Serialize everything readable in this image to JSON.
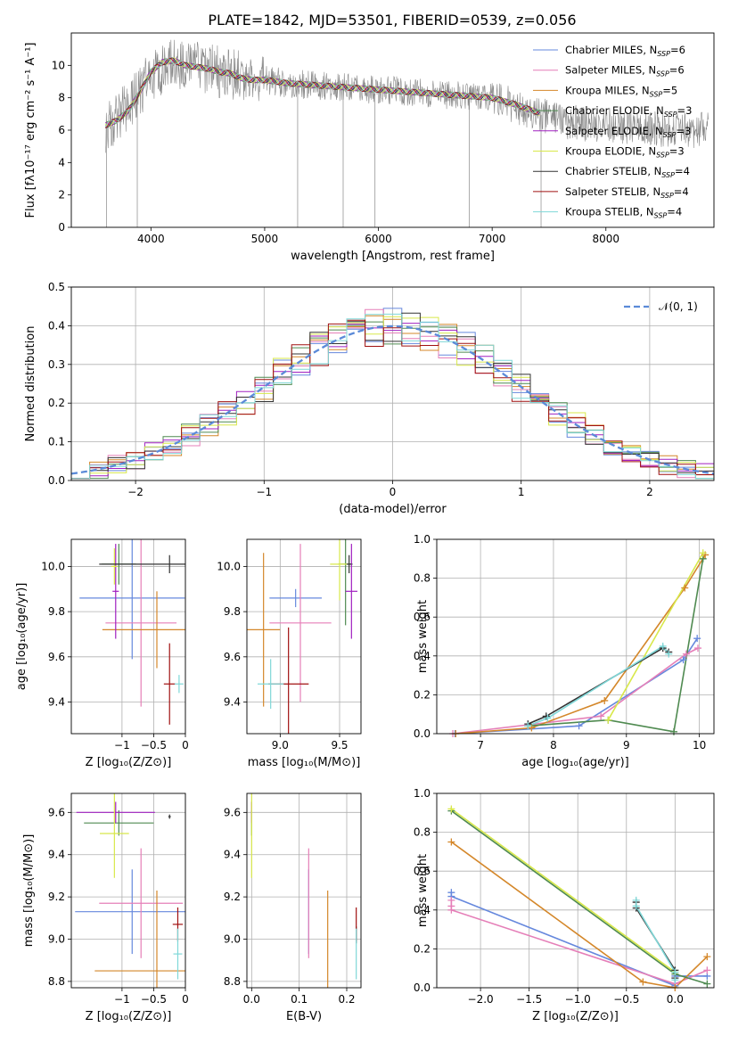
{
  "title": "PLATE=1842, MJD=53501, FIBERID=0539, z=0.056",
  "colors": [
    "#6688dd",
    "#e57fb8",
    "#d4872a",
    "#4f8a50",
    "#a020c0",
    "#d8e84a",
    "#333333",
    "#a01010",
    "#7fd8d8"
  ],
  "chart_data": [
    {
      "type": "line",
      "name": "spectrum",
      "xlabel": "wavelength [Angstrom, rest frame]",
      "ylabel": "Flux [fλ10⁻¹⁷ erg cm⁻² s⁻¹ A⁻¹]",
      "xlim": [
        3300,
        8950
      ],
      "ylim": [
        0,
        12
      ],
      "xticks": [
        4000,
        5000,
        6000,
        7000,
        8000
      ],
      "yticks": [
        0,
        2,
        4,
        6,
        8,
        10
      ],
      "grid": false,
      "legend": "upper right",
      "legend_entries": [
        "Chabrier MILES, N_SSP=6",
        "Salpeter MILES, N_SSP=6",
        "Kroupa MILES, N_SSP=5",
        "Chabrier ELODIE, N_SSP=3",
        "Salpeter ELODIE, N_SSP=3",
        "Kroupa ELODIE, N_SSP=3",
        "Chabrier STELIB, N_SSP=4",
        "Salpeter STELIB, N_SSP=4",
        "Kroupa STELIB, N_SSP=4"
      ],
      "observed": {
        "x": [
          3600,
          3700,
          3800,
          3900,
          4000,
          4100,
          4200,
          4300,
          4400,
          4500,
          4600,
          4700,
          4800,
          4900,
          5000,
          5200,
          5400,
          5600,
          5800,
          6000,
          6200,
          6400,
          6600,
          6800,
          7000,
          7200,
          7400,
          7600,
          7800,
          8000,
          8200,
          8400,
          8600,
          8800
        ],
        "y": [
          6.2,
          6.8,
          7.4,
          8.4,
          9.3,
          9.8,
          10.1,
          10.0,
          9.9,
          9.8,
          9.6,
          9.5,
          9.3,
          9.2,
          9.1,
          8.9,
          8.8,
          8.7,
          8.6,
          8.5,
          8.4,
          8.3,
          8.2,
          8.1,
          8.0,
          7.5,
          7.0,
          6.6,
          6.4,
          6.3,
          6.2,
          6.1,
          6.0,
          6.0
        ]
      },
      "model": {
        "x": [
          3600,
          3700,
          3800,
          3900,
          4000,
          4100,
          4200,
          4300,
          4400,
          4500,
          4600,
          4700,
          4800,
          4900,
          5000,
          5200,
          5400,
          5600,
          5800,
          6000,
          6200,
          6400,
          6600,
          6800,
          7000,
          7200,
          7400
        ],
        "y": [
          6.3,
          6.6,
          7.2,
          8.3,
          9.6,
          10.2,
          10.3,
          10.0,
          9.9,
          9.8,
          9.6,
          9.5,
          9.2,
          9.1,
          9.1,
          8.9,
          8.8,
          8.7,
          8.6,
          8.5,
          8.4,
          8.3,
          8.2,
          8.1,
          8.0,
          7.6,
          7.1
        ]
      }
    },
    {
      "type": "histogram",
      "name": "residuals",
      "xlabel": "(data-model)/error",
      "ylabel": "Normed distribution",
      "xlim": [
        -2.5,
        2.5
      ],
      "ylim": [
        0,
        0.5
      ],
      "xticks": [
        -2,
        -1,
        0,
        1,
        2
      ],
      "yticks": [
        0.0,
        0.1,
        0.2,
        0.3,
        0.4,
        0.5
      ],
      "grid": true,
      "bins": 35,
      "legend": "upper right",
      "legend_entries": [
        "𝒩(0, 1)"
      ]
    },
    {
      "type": "scatter",
      "name": "age-vs-Z",
      "xlabel": "Z [log₁₀(Z/Z⊙)]",
      "ylabel": "age  [log₁₀(age/yr)]",
      "xlim": [
        -1.8,
        0.0
      ],
      "ylim": [
        9.26,
        10.12
      ],
      "xticks": [
        -1,
        -0.5,
        0
      ],
      "yticks": [
        9.4,
        9.6,
        9.8,
        10.0
      ],
      "grid": true,
      "points": [
        {
          "x": -0.84,
          "y": 9.86,
          "xerr": 0.83,
          "yerr": 0.27,
          "c": 0
        },
        {
          "x": -0.7,
          "y": 9.75,
          "xerr": 0.56,
          "yerr": 0.37,
          "c": 1
        },
        {
          "x": -0.45,
          "y": 9.72,
          "xerr": 0.86,
          "yerr": 0.17,
          "c": 2
        },
        {
          "x": -1.05,
          "y": 10.01,
          "xerr": 0.27,
          "yerr": 0.09,
          "c": 3
        },
        {
          "x": -1.1,
          "y": 9.89,
          "xerr": 0.05,
          "yerr": 0.21,
          "c": 4
        },
        {
          "x": -1.12,
          "y": 10.0,
          "xerr": 0.05,
          "yerr": 0.08,
          "c": 5
        },
        {
          "x": -0.25,
          "y": 10.01,
          "xerr": 1.11,
          "yerr": 0.04,
          "c": 6
        },
        {
          "x": -0.25,
          "y": 9.48,
          "xerr": 0.09,
          "yerr": 0.18,
          "c": 7
        },
        {
          "x": -0.1,
          "y": 9.48,
          "xerr": 0.07,
          "yerr": 0.04,
          "c": 8
        }
      ]
    },
    {
      "type": "scatter",
      "name": "age-vs-mass",
      "xlabel": "mass [log₁₀(M/M⊙)]",
      "ylabel": "",
      "xlim": [
        8.72,
        9.68
      ],
      "ylim": [
        9.26,
        10.12
      ],
      "xticks": [
        9.0,
        9.5
      ],
      "yticks": [
        9.4,
        9.6,
        9.8,
        10.0
      ],
      "grid": true,
      "points": [
        {
          "x": 9.13,
          "y": 9.86,
          "xerr": 0.22,
          "yerr": 0.04,
          "c": 0
        },
        {
          "x": 9.17,
          "y": 9.75,
          "xerr": 0.26,
          "yerr": 0.35,
          "c": 1
        },
        {
          "x": 8.86,
          "y": 9.72,
          "xerr": 0.14,
          "yerr": 0.34,
          "c": 2
        },
        {
          "x": 9.55,
          "y": 10.01,
          "xerr": 0.06,
          "yerr": 0.27,
          "c": 3
        },
        {
          "x": 9.6,
          "y": 9.89,
          "xerr": 0.05,
          "yerr": 0.21,
          "c": 4
        },
        {
          "x": 9.5,
          "y": 10.01,
          "xerr": 0.08,
          "yerr": 0.16,
          "c": 5
        },
        {
          "x": 9.58,
          "y": 10.01,
          "xerr": 0.02,
          "yerr": 0.04,
          "c": 6
        },
        {
          "x": 9.07,
          "y": 9.48,
          "xerr": 0.17,
          "yerr": 0.25,
          "c": 7
        },
        {
          "x": 8.92,
          "y": 9.48,
          "xerr": 0.11,
          "yerr": 0.11,
          "c": 8
        }
      ]
    },
    {
      "type": "line",
      "name": "mass-weight-vs-age",
      "xlabel": "age  [log₁₀(age/yr)]",
      "ylabel": "mass weight",
      "xlim": [
        6.4,
        10.2
      ],
      "ylim": [
        0,
        1
      ],
      "xticks": [
        7,
        8,
        9,
        10
      ],
      "yticks": [
        0.0,
        0.2,
        0.4,
        0.6,
        0.8,
        1.0
      ],
      "grid": true,
      "series": [
        {
          "c": 0,
          "x": [
            6.65,
            8.35,
            9.78,
            9.97
          ],
          "y": [
            0.0,
            0.04,
            0.38,
            0.49
          ]
        },
        {
          "c": 1,
          "x": [
            6.62,
            8.65,
            9.82,
            9.98
          ],
          "y": [
            0.0,
            0.09,
            0.41,
            0.44
          ]
        },
        {
          "c": 2,
          "x": [
            6.66,
            7.7,
            8.7,
            9.8,
            10.08
          ],
          "y": [
            0.0,
            0.03,
            0.17,
            0.75,
            0.92
          ]
        },
        {
          "c": 3,
          "x": [
            7.65,
            8.75,
            9.65,
            10.05
          ],
          "y": [
            0.04,
            0.07,
            0.01,
            0.9
          ]
        },
        {
          "c": 5,
          "x": [
            8.75,
            10.05
          ],
          "y": [
            0.07,
            0.93
          ]
        },
        {
          "c": 6,
          "x": [
            7.65,
            7.9,
            9.5,
            9.58
          ],
          "y": [
            0.05,
            0.09,
            0.44,
            0.42
          ]
        },
        {
          "c": 8,
          "x": [
            7.65,
            7.92,
            9.5,
            9.58
          ],
          "y": [
            0.04,
            0.08,
            0.45,
            0.41
          ]
        }
      ]
    },
    {
      "type": "scatter",
      "name": "mass-vs-Z",
      "xlabel": "Z [log₁₀(Z/Z⊙)]",
      "ylabel": "mass [log₁₀(M/M⊙)]",
      "xlim": [
        -1.8,
        0.0
      ],
      "ylim": [
        8.77,
        9.69
      ],
      "xticks": [
        -1,
        -0.5,
        0
      ],
      "yticks": [
        8.8,
        9.0,
        9.2,
        9.4,
        9.6
      ],
      "grid": true,
      "points": [
        {
          "x": -0.84,
          "y": 9.13,
          "xerr": 0.9,
          "yerr": 0.2,
          "c": 0
        },
        {
          "x": -0.7,
          "y": 9.17,
          "xerr": 0.66,
          "yerr": 0.26,
          "c": 1
        },
        {
          "x": -0.45,
          "y": 8.85,
          "xerr": 0.98,
          "yerr": 0.38,
          "c": 2
        },
        {
          "x": -1.05,
          "y": 9.55,
          "xerr": 0.55,
          "yerr": 0.06,
          "c": 3
        },
        {
          "x": -1.1,
          "y": 9.6,
          "xerr": 0.62,
          "yerr": 0.05,
          "c": 4
        },
        {
          "x": -1.12,
          "y": 9.5,
          "xerr": 0.23,
          "yerr": 0.21,
          "c": 5
        },
        {
          "x": -0.25,
          "y": 9.58,
          "xerr": 0.02,
          "yerr": 0.01,
          "c": 6
        },
        {
          "x": -0.12,
          "y": 9.07,
          "xerr": 0.08,
          "yerr": 0.08,
          "c": 7
        },
        {
          "x": -0.12,
          "y": 8.93,
          "xerr": 0.07,
          "yerr": 0.12,
          "c": 8
        }
      ]
    },
    {
      "type": "scatter",
      "name": "mass-vs-EBV",
      "xlabel": "E(B-V)",
      "ylabel": "",
      "xlim": [
        -0.01,
        0.23
      ],
      "ylim": [
        8.77,
        9.69
      ],
      "xticks": [
        0.0,
        0.1,
        0.2
      ],
      "yticks": [
        8.8,
        9.0,
        9.2,
        9.4,
        9.6
      ],
      "grid": true,
      "points": [
        {
          "x": 0.12,
          "y": 9.13,
          "yerr": 0.2,
          "c": 0
        },
        {
          "x": 0.12,
          "y": 9.17,
          "yerr": 0.26,
          "c": 1
        },
        {
          "x": 0.16,
          "y": 8.85,
          "yerr": 0.38,
          "c": 2
        },
        {
          "x": 0.0,
          "y": 9.55,
          "yerr": 0.06,
          "c": 3
        },
        {
          "x": 0.0,
          "y": 9.6,
          "yerr": 0.05,
          "c": 4
        },
        {
          "x": 0.0,
          "y": 9.5,
          "yerr": 0.21,
          "c": 5
        },
        {
          "x": 0.22,
          "y": 9.02,
          "yerr": 0.04,
          "c": 6
        },
        {
          "x": 0.22,
          "y": 9.07,
          "yerr": 0.08,
          "c": 7
        },
        {
          "x": 0.22,
          "y": 8.93,
          "yerr": 0.12,
          "c": 8
        }
      ]
    },
    {
      "type": "line",
      "name": "mass-weight-vs-Z",
      "xlabel": "Z [log₁₀(Z/Z⊙)]",
      "ylabel": "mass weight",
      "xlim": [
        -2.45,
        0.4
      ],
      "ylim": [
        0,
        1
      ],
      "xticks": [
        -2.0,
        -1.5,
        -1.0,
        -0.5,
        0.0
      ],
      "yticks": [
        0.0,
        0.2,
        0.4,
        0.6,
        0.8,
        1.0
      ],
      "grid": true,
      "series": [
        {
          "c": 0,
          "x": [
            -2.3,
            -2.3,
            0.0,
            0.0,
            0.33
          ],
          "y": [
            0.49,
            0.47,
            0.01,
            0.06,
            0.06
          ]
        },
        {
          "c": 1,
          "x": [
            -2.3,
            -2.3,
            -2.3,
            0.0,
            0.33
          ],
          "y": [
            0.45,
            0.42,
            0.4,
            0.02,
            0.09
          ]
        },
        {
          "c": 2,
          "x": [
            -2.3,
            -0.33,
            0.0,
            0.33
          ],
          "y": [
            0.75,
            0.03,
            0.0,
            0.16
          ]
        },
        {
          "c": 3,
          "x": [
            -2.3,
            0.0,
            0.33
          ],
          "y": [
            0.91,
            0.07,
            0.02
          ]
        },
        {
          "c": 5,
          "x": [
            -2.3,
            0.0
          ],
          "y": [
            0.92,
            0.08
          ]
        },
        {
          "c": 6,
          "x": [
            -0.4,
            -0.4,
            0.0,
            0.0
          ],
          "y": [
            0.44,
            0.41,
            0.09,
            0.05
          ]
        },
        {
          "c": 8,
          "x": [
            -0.4,
            -0.4,
            0.0,
            0.0
          ],
          "y": [
            0.45,
            0.42,
            0.08,
            0.04
          ]
        }
      ]
    }
  ]
}
